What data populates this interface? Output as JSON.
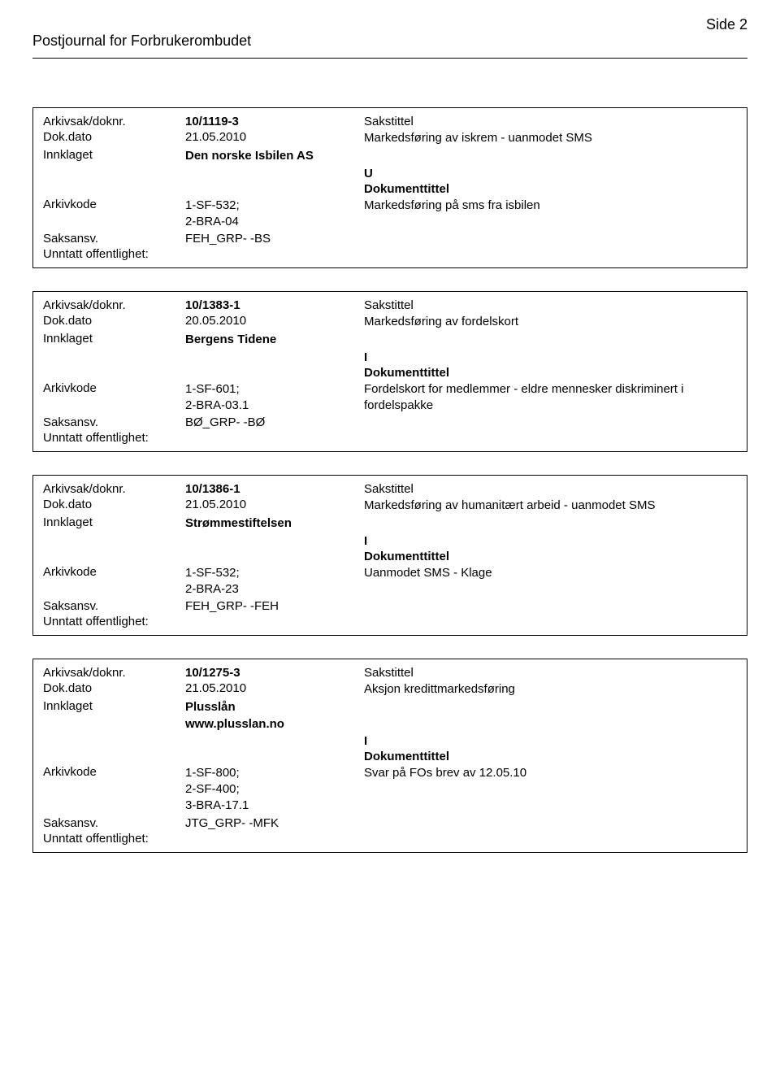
{
  "header": {
    "journal_title": "Postjournal for Forbrukerombudet",
    "page_label": "Side 2"
  },
  "labels": {
    "arkivsak": "Arkivsak/doknr.",
    "doknr_suffix": "",
    "dokdato": "Dok.dato",
    "innklaget": "Innklaget",
    "arkivkode": "Arkivkode",
    "saksansv": "Saksansv.",
    "unntatt": "Unntatt offentlighet:",
    "sakstittel": "Sakstittel",
    "dokumenttittel": "Dokumenttittel"
  },
  "entries": [
    {
      "arkivsak": "10/1119-3",
      "dokdato": "21.05.2010",
      "innklaget": "Den norske Isbilen AS",
      "doktype": "U",
      "arkivkode": "1-SF-532;\n2-BRA-04",
      "saksansv": "FEH_GRP- -BS",
      "sakstittel": "Markedsføring av iskrem - uanmodet SMS",
      "dokumenttittel": "Markedsføring på sms fra isbilen"
    },
    {
      "arkivsak": "10/1383-1",
      "dokdato": "20.05.2010",
      "innklaget": "Bergens Tidene",
      "doktype": "I",
      "arkivkode": "1-SF-601;\n2-BRA-03.1",
      "saksansv": "BØ_GRP- -BØ",
      "sakstittel": "Markedsføring av fordelskort",
      "dokumenttittel": "Fordelskort for medlemmer - eldre mennesker diskriminert i fordelspakke"
    },
    {
      "arkivsak": "10/1386-1",
      "dokdato": "21.05.2010",
      "innklaget": "Strømmestiftelsen",
      "doktype": "I",
      "arkivkode": "1-SF-532;\n2-BRA-23",
      "saksansv": "FEH_GRP- -FEH",
      "sakstittel": "Markedsføring av humanitært arbeid - uanmodet SMS",
      "dokumenttittel": "Uanmodet SMS - Klage"
    },
    {
      "arkivsak": "10/1275-3",
      "dokdato": "21.05.2010",
      "innklaget": "Plusslån\nwww.plusslan.no",
      "doktype": "I",
      "arkivkode": "1-SF-800;\n2-SF-400;\n3-BRA-17.1",
      "saksansv": "JTG_GRP- -MFK",
      "sakstittel": "Aksjon kredittmarkedsføring",
      "dokumenttittel": "Svar på FOs brev av 12.05.10"
    }
  ]
}
